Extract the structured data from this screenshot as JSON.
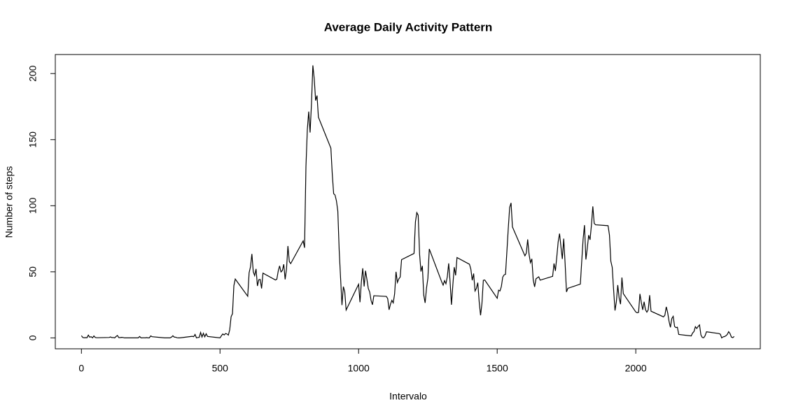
{
  "chart_data": {
    "type": "line",
    "title": "Average Daily Activity Pattern",
    "x_label": "Intervalo",
    "y_label": "Number of steps",
    "color": "#000000",
    "xlim": [
      -94.2,
      2449.2
    ],
    "ylim": [
      -8.25,
      214.4
    ],
    "xticks": [
      0,
      500,
      1000,
      1500,
      2000
    ],
    "yticks": [
      0,
      50,
      100,
      150,
      200
    ],
    "x": [
      0,
      5,
      10,
      15,
      20,
      25,
      30,
      35,
      40,
      45,
      50,
      55,
      100,
      105,
      110,
      115,
      120,
      125,
      130,
      135,
      140,
      145,
      150,
      155,
      200,
      205,
      210,
      215,
      220,
      225,
      230,
      235,
      240,
      245,
      250,
      255,
      300,
      305,
      310,
      315,
      320,
      325,
      330,
      335,
      340,
      345,
      350,
      355,
      400,
      405,
      410,
      415,
      420,
      425,
      430,
      435,
      440,
      445,
      450,
      455,
      500,
      505,
      510,
      515,
      520,
      525,
      530,
      535,
      540,
      545,
      550,
      555,
      600,
      605,
      610,
      615,
      620,
      625,
      630,
      635,
      640,
      645,
      650,
      655,
      700,
      705,
      710,
      715,
      720,
      725,
      730,
      735,
      740,
      745,
      750,
      755,
      800,
      805,
      810,
      815,
      820,
      825,
      830,
      835,
      840,
      845,
      850,
      855,
      900,
      905,
      910,
      915,
      920,
      925,
      930,
      935,
      940,
      945,
      950,
      955,
      1000,
      1005,
      1010,
      1015,
      1020,
      1025,
      1030,
      1035,
      1040,
      1045,
      1050,
      1055,
      1100,
      1105,
      1110,
      1115,
      1120,
      1125,
      1130,
      1135,
      1140,
      1145,
      1150,
      1155,
      1200,
      1205,
      1210,
      1215,
      1220,
      1225,
      1230,
      1235,
      1240,
      1245,
      1250,
      1255,
      1300,
      1305,
      1310,
      1315,
      1320,
      1325,
      1330,
      1335,
      1340,
      1345,
      1350,
      1355,
      1400,
      1405,
      1410,
      1415,
      1420,
      1425,
      1430,
      1435,
      1440,
      1445,
      1450,
      1455,
      1500,
      1505,
      1510,
      1515,
      1520,
      1525,
      1530,
      1535,
      1540,
      1545,
      1550,
      1555,
      1600,
      1605,
      1610,
      1615,
      1620,
      1625,
      1630,
      1635,
      1640,
      1645,
      1650,
      1655,
      1700,
      1705,
      1710,
      1715,
      1720,
      1725,
      1730,
      1735,
      1740,
      1745,
      1750,
      1755,
      1800,
      1805,
      1810,
      1815,
      1820,
      1825,
      1830,
      1835,
      1840,
      1845,
      1850,
      1855,
      1900,
      1905,
      1910,
      1915,
      1920,
      1925,
      1930,
      1935,
      1940,
      1945,
      1950,
      1955,
      2000,
      2005,
      2010,
      2015,
      2020,
      2025,
      2030,
      2035,
      2040,
      2045,
      2050,
      2055,
      2100,
      2105,
      2110,
      2115,
      2120,
      2125,
      2130,
      2135,
      2140,
      2145,
      2150,
      2155,
      2200,
      2205,
      2210,
      2215,
      2220,
      2225,
      2230,
      2235,
      2240,
      2245,
      2250,
      2255,
      2300,
      2305,
      2310,
      2315,
      2320,
      2325,
      2330,
      2335,
      2340,
      2345,
      2350,
      2355
    ],
    "values": [
      1.7,
      0.3,
      0.1,
      0.2,
      0.1,
      2.1,
      0.5,
      0.9,
      0,
      1.5,
      0.3,
      0.1,
      0.3,
      0.7,
      0.2,
      0.3,
      0,
      1.1,
      1.8,
      0.2,
      0.2,
      0.4,
      0.3,
      0,
      0,
      0,
      1.1,
      0,
      0,
      0.1,
      0,
      0.2,
      0,
      0,
      1.5,
      0.9,
      0,
      0,
      0,
      0,
      0,
      0.6,
      1.6,
      0.6,
      0.5,
      0.1,
      0,
      0,
      1.2,
      0.9,
      2.6,
      0,
      0.3,
      0.4,
      4.1,
      0.7,
      3.5,
      0.8,
      3.1,
      1.1,
      0,
      1.6,
      3,
      2.2,
      3.3,
      3,
      2.1,
      6.1,
      16,
      18.3,
      39.5,
      44.5,
      31.5,
      49.3,
      53.8,
      63.5,
      50,
      47.1,
      52.2,
      39.3,
      44,
      44.2,
      37.4,
      49,
      43.8,
      44.4,
      50.5,
      54.5,
      49.9,
      51,
      55.7,
      44.3,
      52.3,
      69.5,
      57.8,
      56.2,
      73.4,
      68.2,
      129.4,
      157.5,
      171.2,
      155.4,
      177.3,
      206.2,
      195.9,
      179.6,
      183.4,
      167,
      143.5,
      124,
      109.1,
      108.1,
      103.7,
      96,
      66.2,
      45.2,
      24.8,
      38.8,
      35,
      21.1,
      40.6,
      27,
      42.4,
      52.7,
      38.9,
      50.8,
      44.3,
      37.4,
      34.7,
      28.3,
      25.1,
      31.9,
      31.4,
      29.7,
      21.3,
      25.5,
      28.4,
      26.5,
      33.4,
      50,
      42,
      44.6,
      46,
      59.2,
      63.9,
      87.7,
      94.8,
      92.8,
      63.4,
      50.2,
      54.5,
      32.4,
      26.5,
      37.7,
      45.1,
      67.3,
      42.3,
      39.9,
      43.3,
      41,
      46.2,
      56.4,
      42.7,
      25.1,
      40,
      53.5,
      47.3,
      60.8,
      55.7,
      52,
      43.6,
      48.7,
      35.5,
      37.5,
      41.8,
      27.5,
      17.1,
      26.1,
      43.6,
      43.8,
      30,
      36.1,
      35.5,
      38.8,
      46,
      47.7,
      48.1,
      65.3,
      82.9,
      98.7,
      102.1,
      84,
      62.1,
      64.1,
      74.5,
      63.2,
      56.9,
      59.8,
      43.9,
      38.6,
      44.7,
      45.5,
      46.2,
      43.7,
      46.6,
      56.3,
      50.7,
      61.2,
      72.7,
      78.9,
      68.9,
      59.7,
      75.1,
      56.5,
      34.8,
      37.5,
      40.7,
      58,
      74.7,
      85.3,
      59.3,
      67.8,
      77.7,
      74.2,
      85.3,
      99.5,
      86.6,
      85.6,
      84.9,
      77.8,
      58,
      53.4,
      36.3,
      20.7,
      27.4,
      40,
      30.2,
      25.5,
      45.7,
      33.5,
      19.6,
      19,
      19.3,
      33.3,
      26.8,
      21.2,
      27.3,
      21.3,
      19.5,
      21.3,
      32.3,
      20.2,
      15.9,
      17.2,
      23.5,
      19.2,
      12.5,
      8,
      14.7,
      16.3,
      8.7,
      7.8,
      8.1,
      2.6,
      1.5,
      3.7,
      4.8,
      8.5,
      7.1,
      8.7,
      9.8,
      2.2,
      0.3,
      0.1,
      1.6,
      4.6,
      3.3,
      2.8,
      0,
      0.8,
      1,
      1.6,
      2.6,
      4.7,
      3.3,
      0.6,
      0.2,
      1.1
    ]
  }
}
